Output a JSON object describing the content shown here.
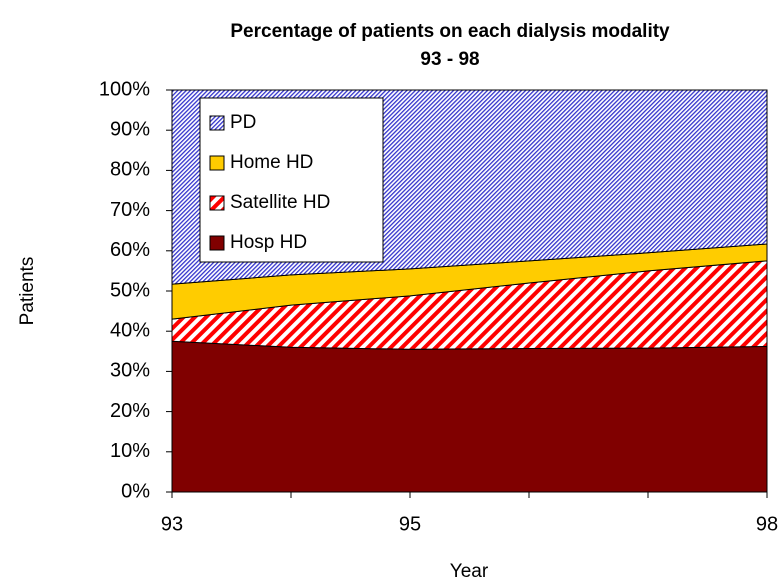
{
  "chart_data": {
    "type": "stacked_area",
    "title": "Percentage of patients on each dialysis modality",
    "subtitle": "93 - 98",
    "x_label": "Year",
    "y_label": "Patients",
    "x": [
      93,
      94,
      95,
      96,
      97,
      98
    ],
    "xlim": [
      93,
      98
    ],
    "xticks": [
      93,
      95,
      98
    ],
    "xminorticks": [
      94,
      96,
      97
    ],
    "ylim": [
      0,
      100
    ],
    "yticks": [
      {
        "value": 0,
        "label": "0%"
      },
      {
        "value": 10,
        "label": "10%"
      },
      {
        "value": 20,
        "label": "20%"
      },
      {
        "value": 30,
        "label": "30%"
      },
      {
        "value": 40,
        "label": "40%"
      },
      {
        "value": 50,
        "label": "50%"
      },
      {
        "value": 60,
        "label": "60%"
      },
      {
        "value": 70,
        "label": "70%"
      },
      {
        "value": 80,
        "label": "80%"
      },
      {
        "value": 90,
        "label": "90%"
      },
      {
        "value": 100,
        "label": "100%"
      }
    ],
    "legend_position": "upper left",
    "series": [
      {
        "name": "Hosp HD",
        "color": "#800000",
        "values": [
          37.5,
          36,
          35.5,
          35.7,
          35.8,
          36.2
        ]
      },
      {
        "name": "Satellite HD",
        "color": "#ff0000",
        "pattern": "wide-diagonal",
        "values": [
          5.5,
          10.5,
          13.3,
          16.3,
          19.2,
          21.3
        ]
      },
      {
        "name": "Home HD",
        "color": "#ffcc00",
        "values": [
          8.7,
          7.5,
          6.7,
          5.5,
          4.5,
          4.2
        ]
      },
      {
        "name": "PD",
        "color": "#3333cc",
        "pattern": "dense-diagonal",
        "values": [
          48.3,
          46,
          44.5,
          42.5,
          40.5,
          38.3
        ]
      }
    ]
  }
}
